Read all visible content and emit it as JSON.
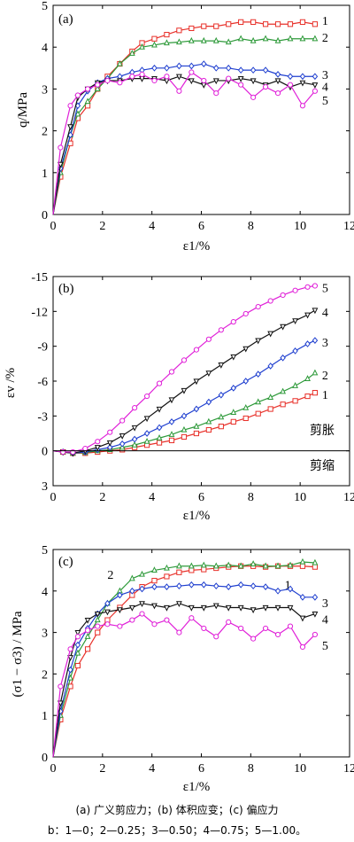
{
  "chart_data": [
    {
      "type": "line",
      "panel_label": "(a)",
      "xlabel": "ε1/%",
      "ylabel": "q/MPa",
      "xlim": [
        0,
        12
      ],
      "ylim": [
        0,
        5
      ],
      "xticks": [
        "0",
        "2",
        "4",
        "6",
        "8",
        "10",
        "12"
      ],
      "yticks": [
        "0",
        "1",
        "2",
        "3",
        "4",
        "5"
      ],
      "series": [
        {
          "name": "1",
          "color": "#e8312a",
          "marker": "square",
          "x": [
            0,
            0.3,
            0.7,
            1.0,
            1.4,
            1.8,
            2.2,
            2.7,
            3.2,
            3.6,
            4.1,
            4.6,
            5.1,
            5.6,
            6.1,
            6.6,
            7.1,
            7.6,
            8.1,
            8.6,
            9.1,
            9.6,
            10.1,
            10.6
          ],
          "y": [
            0,
            0.9,
            1.7,
            2.3,
            2.6,
            3.0,
            3.3,
            3.6,
            3.9,
            4.1,
            4.2,
            4.3,
            4.4,
            4.45,
            4.5,
            4.5,
            4.55,
            4.6,
            4.6,
            4.55,
            4.55,
            4.55,
            4.6,
            4.55
          ]
        },
        {
          "name": "2",
          "color": "#2e9a3a",
          "marker": "triangle",
          "x": [
            0,
            0.3,
            0.7,
            1.0,
            1.4,
            1.8,
            2.2,
            2.7,
            3.2,
            3.6,
            4.1,
            4.6,
            5.1,
            5.6,
            6.1,
            6.6,
            7.1,
            7.6,
            8.1,
            8.6,
            9.1,
            9.6,
            10.1,
            10.6
          ],
          "y": [
            0,
            1.0,
            1.9,
            2.4,
            2.7,
            3.0,
            3.25,
            3.6,
            3.85,
            4.0,
            4.05,
            4.1,
            4.12,
            4.15,
            4.15,
            4.15,
            4.12,
            4.2,
            4.15,
            4.2,
            4.15,
            4.2,
            4.2,
            4.2
          ]
        },
        {
          "name": "3",
          "color": "#1f3fcf",
          "marker": "diamond",
          "x": [
            0,
            0.3,
            0.7,
            1.0,
            1.4,
            1.8,
            2.2,
            2.7,
            3.2,
            3.6,
            4.1,
            4.6,
            5.1,
            5.6,
            6.1,
            6.6,
            7.1,
            7.6,
            8.1,
            8.6,
            9.1,
            9.6,
            10.1,
            10.6
          ],
          "y": [
            0,
            1.1,
            1.9,
            2.6,
            2.95,
            3.15,
            3.25,
            3.3,
            3.4,
            3.45,
            3.5,
            3.5,
            3.55,
            3.55,
            3.6,
            3.5,
            3.5,
            3.45,
            3.45,
            3.45,
            3.35,
            3.3,
            3.3,
            3.3
          ]
        },
        {
          "name": "4",
          "color": "#111111",
          "marker": "triangle-down",
          "x": [
            0,
            0.3,
            0.7,
            1.0,
            1.4,
            1.8,
            2.2,
            2.7,
            3.2,
            3.6,
            4.1,
            4.6,
            5.1,
            5.6,
            6.1,
            6.6,
            7.1,
            7.6,
            8.1,
            8.6,
            9.1,
            9.6,
            10.1,
            10.6
          ],
          "y": [
            0,
            1.2,
            2.1,
            2.8,
            3.0,
            3.15,
            3.2,
            3.2,
            3.25,
            3.25,
            3.25,
            3.2,
            3.3,
            3.2,
            3.1,
            3.2,
            3.2,
            3.25,
            3.2,
            3.1,
            3.2,
            3.05,
            3.15,
            3.1
          ]
        },
        {
          "name": "5",
          "color": "#e020d8",
          "marker": "circle",
          "x": [
            0,
            0.3,
            0.7,
            1.0,
            1.4,
            1.8,
            2.2,
            2.7,
            3.2,
            3.6,
            4.1,
            4.6,
            5.1,
            5.6,
            6.1,
            6.6,
            7.1,
            7.6,
            8.1,
            8.6,
            9.1,
            9.6,
            10.1,
            10.6
          ],
          "y": [
            0,
            1.6,
            2.6,
            2.85,
            3.0,
            3.1,
            3.2,
            3.15,
            3.3,
            3.35,
            3.2,
            3.3,
            2.95,
            3.4,
            3.2,
            2.9,
            3.25,
            3.1,
            2.8,
            3.05,
            2.9,
            3.1,
            2.6,
            2.95
          ]
        }
      ]
    },
    {
      "type": "line",
      "panel_label": "(b)",
      "xlabel": "ε1/%",
      "ylabel": "εv /%",
      "xlim": [
        0,
        12
      ],
      "ylim": [
        3,
        -15
      ],
      "y_inverted": true,
      "xticks": [
        "0",
        "2",
        "4",
        "6",
        "8",
        "10",
        "12"
      ],
      "yticks": [
        "-15",
        "-12",
        "-9",
        "-6",
        "-3",
        "0",
        "3"
      ],
      "annotations": [
        "剪胀",
        "剪缩"
      ],
      "series": [
        {
          "name": "1",
          "color": "#e8312a",
          "marker": "square",
          "x": [
            0,
            0.4,
            0.8,
            1.3,
            1.8,
            2.3,
            2.8,
            3.3,
            3.8,
            4.3,
            4.8,
            5.3,
            5.8,
            6.3,
            6.8,
            7.3,
            7.8,
            8.3,
            8.8,
            9.3,
            9.8,
            10.3,
            10.6
          ],
          "y": [
            0,
            0.1,
            0.2,
            0.2,
            0.1,
            0.0,
            -0.1,
            -0.3,
            -0.5,
            -0.7,
            -0.9,
            -1.2,
            -1.5,
            -1.8,
            -2.1,
            -2.5,
            -2.8,
            -3.2,
            -3.6,
            -4.0,
            -4.3,
            -4.7,
            -5.0
          ]
        },
        {
          "name": "2",
          "color": "#2e9a3a",
          "marker": "triangle",
          "x": [
            0,
            0.4,
            0.8,
            1.3,
            1.8,
            2.3,
            2.8,
            3.3,
            3.8,
            4.3,
            4.8,
            5.3,
            5.8,
            6.3,
            6.8,
            7.3,
            7.8,
            8.3,
            8.8,
            9.3,
            9.8,
            10.3,
            10.6
          ],
          "y": [
            0,
            0.1,
            0.2,
            0.15,
            0.0,
            -0.1,
            -0.3,
            -0.5,
            -0.8,
            -1.1,
            -1.4,
            -1.8,
            -2.1,
            -2.5,
            -2.9,
            -3.3,
            -3.7,
            -4.2,
            -4.6,
            -5.1,
            -5.6,
            -6.2,
            -6.7
          ]
        },
        {
          "name": "3",
          "color": "#1f3fcf",
          "marker": "diamond",
          "x": [
            0,
            0.4,
            0.8,
            1.3,
            1.8,
            2.3,
            2.8,
            3.3,
            3.8,
            4.3,
            4.8,
            5.3,
            5.8,
            6.3,
            6.8,
            7.3,
            7.8,
            8.3,
            8.8,
            9.3,
            9.8,
            10.3,
            10.6
          ],
          "y": [
            0,
            0.1,
            0.2,
            0.1,
            -0.1,
            -0.3,
            -0.6,
            -1.0,
            -1.5,
            -2.0,
            -2.5,
            -3.0,
            -3.6,
            -4.2,
            -4.8,
            -5.4,
            -6.0,
            -6.6,
            -7.3,
            -8.0,
            -8.6,
            -9.2,
            -9.5
          ]
        },
        {
          "name": "4",
          "color": "#111111",
          "marker": "triangle-down",
          "x": [
            0,
            0.4,
            0.8,
            1.3,
            1.8,
            2.3,
            2.8,
            3.3,
            3.8,
            4.3,
            4.8,
            5.3,
            5.8,
            6.3,
            6.8,
            7.3,
            7.8,
            8.3,
            8.8,
            9.3,
            9.8,
            10.3,
            10.6
          ],
          "y": [
            0,
            0.1,
            0.2,
            0.0,
            -0.3,
            -0.7,
            -1.3,
            -2.0,
            -2.8,
            -3.6,
            -4.4,
            -5.2,
            -6.0,
            -6.7,
            -7.4,
            -8.1,
            -8.8,
            -9.5,
            -10.1,
            -10.7,
            -11.2,
            -11.7,
            -12.1
          ]
        },
        {
          "name": "5",
          "color": "#e020d8",
          "marker": "circle",
          "x": [
            0,
            0.4,
            0.8,
            1.3,
            1.8,
            2.3,
            2.8,
            3.3,
            3.8,
            4.3,
            4.8,
            5.3,
            5.8,
            6.3,
            6.8,
            7.3,
            7.8,
            8.3,
            8.8,
            9.3,
            9.8,
            10.3,
            10.6
          ],
          "y": [
            0,
            0.1,
            0.1,
            -0.2,
            -0.8,
            -1.6,
            -2.6,
            -3.7,
            -4.7,
            -5.8,
            -6.8,
            -7.8,
            -8.7,
            -9.6,
            -10.4,
            -11.1,
            -11.8,
            -12.4,
            -12.9,
            -13.4,
            -13.8,
            -14.1,
            -14.2
          ]
        }
      ]
    },
    {
      "type": "line",
      "panel_label": "(c)",
      "xlabel": "ε1/%",
      "ylabel": "(σ1 − σ3) / MPa",
      "xlim": [
        0,
        12
      ],
      "ylim": [
        0,
        5
      ],
      "xticks": [
        "0",
        "2",
        "4",
        "6",
        "8",
        "10",
        "12"
      ],
      "yticks": [
        "0",
        "1",
        "2",
        "3",
        "4",
        "5"
      ],
      "series": [
        {
          "name": "1",
          "color": "#e8312a",
          "marker": "square",
          "x": [
            0,
            0.3,
            0.7,
            1.0,
            1.4,
            1.8,
            2.2,
            2.7,
            3.2,
            3.6,
            4.1,
            4.6,
            5.1,
            5.6,
            6.1,
            6.6,
            7.1,
            7.6,
            8.1,
            8.6,
            9.1,
            9.6,
            10.1,
            10.6
          ],
          "y": [
            0,
            0.9,
            1.7,
            2.2,
            2.6,
            3.0,
            3.3,
            3.6,
            3.9,
            4.1,
            4.25,
            4.35,
            4.45,
            4.5,
            4.52,
            4.55,
            4.58,
            4.6,
            4.6,
            4.58,
            4.6,
            4.6,
            4.6,
            4.58
          ]
        },
        {
          "name": "2",
          "color": "#2e9a3a",
          "marker": "triangle",
          "x": [
            0,
            0.3,
            0.7,
            1.0,
            1.4,
            1.8,
            2.2,
            2.7,
            3.2,
            3.6,
            4.1,
            4.6,
            5.1,
            5.6,
            6.1,
            6.6,
            7.1,
            7.6,
            8.1,
            8.6,
            9.1,
            9.6,
            10.1,
            10.6
          ],
          "y": [
            0,
            1.0,
            1.9,
            2.5,
            2.9,
            3.3,
            3.7,
            4.0,
            4.3,
            4.4,
            4.5,
            4.55,
            4.6,
            4.6,
            4.62,
            4.6,
            4.62,
            4.6,
            4.65,
            4.6,
            4.6,
            4.62,
            4.7,
            4.68
          ]
        },
        {
          "name": "3",
          "color": "#1f3fcf",
          "marker": "diamond",
          "x": [
            0,
            0.3,
            0.7,
            1.0,
            1.4,
            1.8,
            2.2,
            2.7,
            3.2,
            3.6,
            4.1,
            4.6,
            5.1,
            5.6,
            6.1,
            6.6,
            7.1,
            7.6,
            8.1,
            8.6,
            9.1,
            9.6,
            10.1,
            10.6
          ],
          "y": [
            0,
            1.1,
            2.1,
            2.7,
            3.1,
            3.45,
            3.7,
            3.9,
            4.0,
            4.05,
            4.1,
            4.1,
            4.12,
            4.15,
            4.15,
            4.12,
            4.1,
            4.15,
            4.12,
            4.1,
            4.0,
            4.05,
            3.85,
            3.85
          ]
        },
        {
          "name": "4",
          "color": "#111111",
          "marker": "triangle-down",
          "x": [
            0,
            0.3,
            0.7,
            1.0,
            1.4,
            1.8,
            2.2,
            2.7,
            3.2,
            3.6,
            4.1,
            4.6,
            5.1,
            5.6,
            6.1,
            6.6,
            7.1,
            7.6,
            8.1,
            8.6,
            9.1,
            9.6,
            10.1,
            10.6
          ],
          "y": [
            0,
            1.3,
            2.4,
            3.0,
            3.3,
            3.45,
            3.5,
            3.55,
            3.6,
            3.7,
            3.65,
            3.6,
            3.7,
            3.6,
            3.6,
            3.65,
            3.6,
            3.6,
            3.55,
            3.6,
            3.6,
            3.6,
            3.35,
            3.45
          ]
        },
        {
          "name": "5",
          "color": "#e020d8",
          "marker": "circle",
          "x": [
            0,
            0.3,
            0.7,
            1.0,
            1.4,
            1.8,
            2.2,
            2.7,
            3.2,
            3.6,
            4.1,
            4.6,
            5.1,
            5.6,
            6.1,
            6.6,
            7.1,
            7.6,
            8.1,
            8.6,
            9.1,
            9.6,
            10.1,
            10.6
          ],
          "y": [
            0,
            1.7,
            2.6,
            2.9,
            3.05,
            3.15,
            3.2,
            3.15,
            3.3,
            3.45,
            3.2,
            3.3,
            3.0,
            3.35,
            3.1,
            2.9,
            3.25,
            3.1,
            2.85,
            3.1,
            2.95,
            3.15,
            2.65,
            2.95
          ]
        }
      ]
    }
  ],
  "caption": {
    "line1": "(a) 广义剪应力；(b) 体积应变；(c) 偏应力",
    "line2": "b：1—0；2—0.25；3—0.50；4—0.75；5—1.00。"
  }
}
